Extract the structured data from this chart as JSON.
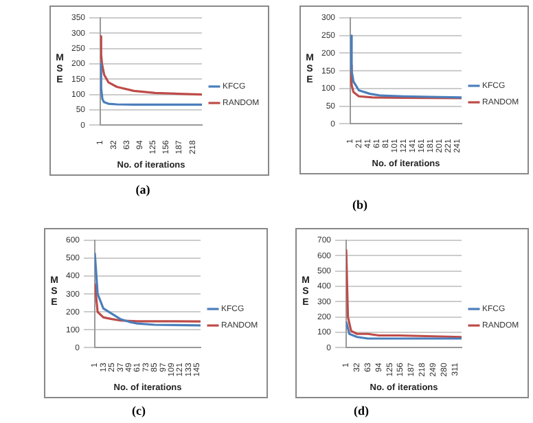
{
  "chart_data": [
    {
      "type": "line",
      "xlabel": "No. of iterations",
      "ylabel": "MSE",
      "annotations": [
        "(a)"
      ],
      "xlim": [
        1,
        240
      ],
      "xticks": [
        1,
        32,
        63,
        94,
        125,
        156,
        187,
        218
      ],
      "ylim": [
        0,
        350
      ],
      "yticks": [
        0,
        50,
        100,
        150,
        200,
        250,
        300,
        350
      ],
      "grid": "y",
      "legend": "right",
      "marker": "none",
      "line_style": "solid",
      "series": [
        {
          "name": "KFCG",
          "color": "#4a7ebb",
          "x": [
            1,
            3,
            6,
            10,
            20,
            40,
            80,
            150,
            240
          ],
          "values": [
            200,
            120,
            85,
            75,
            70,
            68,
            67,
            67,
            67
          ]
        },
        {
          "name": "RANDOM",
          "color": "#be4b48",
          "x": [
            1,
            3,
            5,
            10,
            20,
            40,
            80,
            130,
            200,
            240
          ],
          "values": [
            290,
            230,
            200,
            165,
            140,
            125,
            112,
            105,
            102,
            100
          ]
        }
      ]
    },
    {
      "type": "line",
      "xlabel": "No. of iterations",
      "ylabel": "MSE",
      "annotations": [
        "(b)"
      ],
      "xlim": [
        1,
        250
      ],
      "xticks": [
        1,
        21,
        41,
        61,
        81,
        101,
        121,
        141,
        161,
        181,
        201,
        221,
        241
      ],
      "ylim": [
        0,
        300
      ],
      "yticks": [
        0,
        50,
        100,
        150,
        200,
        250,
        300
      ],
      "grid": "y",
      "legend": "right",
      "marker": "none",
      "line_style": "solid",
      "series": [
        {
          "name": "KFCG",
          "color": "#4a7ebb",
          "x": [
            1,
            4,
            8,
            20,
            45,
            70,
            120,
            200,
            250
          ],
          "values": [
            250,
            150,
            120,
            95,
            85,
            80,
            78,
            76,
            75
          ]
        },
        {
          "name": "RANDOM",
          "color": "#be4b48",
          "x": [
            1,
            4,
            8,
            20,
            50,
            120,
            250
          ],
          "values": [
            165,
            110,
            90,
            78,
            75,
            74,
            73
          ]
        }
      ]
    },
    {
      "type": "line",
      "xlabel": "No. of iterations",
      "ylabel": "MSE",
      "annotations": [
        "(c)"
      ],
      "xlim": [
        1,
        150
      ],
      "xticks": [
        1,
        13,
        25,
        37,
        49,
        61,
        73,
        85,
        97,
        109,
        121,
        133,
        145
      ],
      "ylim": [
        0,
        600
      ],
      "yticks": [
        0,
        100,
        200,
        300,
        400,
        500,
        600
      ],
      "grid": "y",
      "legend": "right",
      "marker": "none",
      "line_style": "solid",
      "series": [
        {
          "name": "KFCG",
          "color": "#4a7ebb",
          "x": [
            1,
            5,
            13,
            25,
            37,
            49,
            61,
            85,
            150
          ],
          "values": [
            530,
            300,
            220,
            190,
            160,
            145,
            135,
            128,
            125
          ]
        },
        {
          "name": "RANDOM",
          "color": "#be4b48",
          "x": [
            1,
            5,
            13,
            25,
            37,
            61,
            150
          ],
          "values": [
            360,
            200,
            170,
            160,
            152,
            148,
            147
          ]
        }
      ]
    },
    {
      "type": "line",
      "xlabel": "No. of iterations",
      "ylabel": "MSE",
      "annotations": [
        "(d)"
      ],
      "xlim": [
        1,
        330
      ],
      "xticks": [
        1,
        32,
        63,
        94,
        125,
        156,
        187,
        218,
        249,
        280,
        311
      ],
      "ylim": [
        0,
        700
      ],
      "yticks": [
        0,
        100,
        200,
        300,
        400,
        500,
        600,
        700
      ],
      "grid": "y",
      "legend": "right",
      "marker": "none",
      "line_style": "solid",
      "series": [
        {
          "name": "KFCG",
          "color": "#4a7ebb",
          "x": [
            1,
            10,
            32,
            63,
            120,
            330
          ],
          "values": [
            170,
            90,
            70,
            60,
            60,
            60
          ]
        },
        {
          "name": "RANDOM",
          "color": "#be4b48",
          "x": [
            1,
            6,
            15,
            32,
            63,
            94,
            150,
            330
          ],
          "values": [
            640,
            200,
            110,
            90,
            90,
            80,
            80,
            70
          ]
        }
      ]
    }
  ]
}
